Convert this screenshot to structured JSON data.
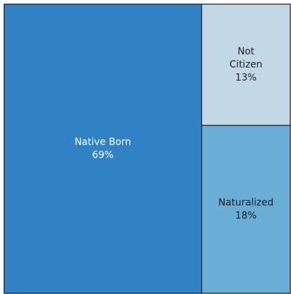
{
  "chart_data": {
    "type": "treemap",
    "title": "",
    "items": [
      {
        "label_lines": [
          "Native Born"
        ],
        "value_label": "69%",
        "value": 69,
        "color": "#3182c4",
        "text_color": "#ffffff"
      },
      {
        "label_lines": [
          "Not",
          "Citizen"
        ],
        "value_label": "13%",
        "value": 13,
        "color": "#c3d8e6",
        "text_color": "#222222"
      },
      {
        "label_lines": [
          "Naturalized"
        ],
        "value_label": "18%",
        "value": 18,
        "color": "#6aaed8",
        "text_color": "#1a1a1a"
      }
    ]
  }
}
